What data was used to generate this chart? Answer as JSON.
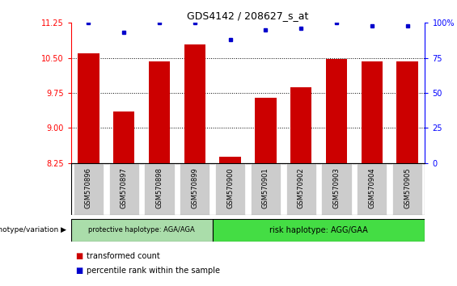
{
  "title": "GDS4142 / 208627_s_at",
  "samples": [
    "GSM570896",
    "GSM570897",
    "GSM570898",
    "GSM570899",
    "GSM570900",
    "GSM570901",
    "GSM570902",
    "GSM570903",
    "GSM570904",
    "GSM570905"
  ],
  "bar_values": [
    10.6,
    9.35,
    10.42,
    10.78,
    8.38,
    9.65,
    9.88,
    10.48,
    10.42,
    10.42
  ],
  "bar_color": "#cc0000",
  "percentile_values": [
    100,
    93,
    100,
    100,
    88,
    95,
    96,
    100,
    98,
    98
  ],
  "percentile_color": "#0000cc",
  "ylim_left": [
    8.25,
    11.25
  ],
  "yticks_left": [
    8.25,
    9.0,
    9.75,
    10.5,
    11.25
  ],
  "ylim_right": [
    0,
    100
  ],
  "yticks_right": [
    0,
    25,
    50,
    75,
    100
  ],
  "yright_labels": [
    "0",
    "25",
    "50",
    "75",
    "100%"
  ],
  "group1_count": 4,
  "group1_label": "protective haplotype: AGA/AGA",
  "group2_label": "risk haplotype: AGG/GAA",
  "group_label_prefix": "genotype/variation",
  "group1_bg": "#aaddaa",
  "group2_bg": "#44dd44",
  "tick_bg": "#cccccc",
  "legend_red": "transformed count",
  "legend_blue": "percentile rank within the sample",
  "bar_width": 0.6,
  "fig_width": 5.65,
  "fig_height": 3.54
}
